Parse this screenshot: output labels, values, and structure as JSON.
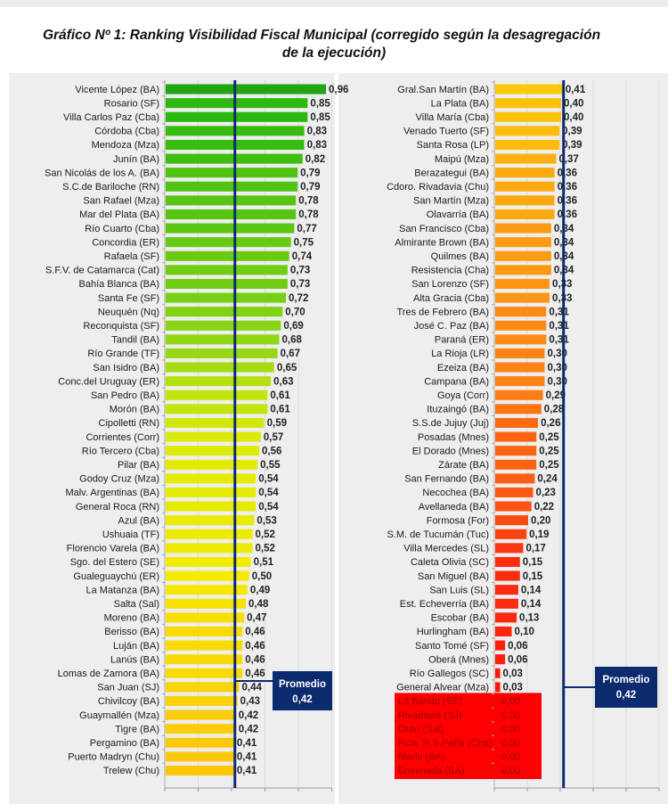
{
  "title": {
    "line1": "Gráfico Nº 1: Ranking Visibilidad Fiscal Municipal (corregido según la desagregación",
    "line2": "de la ejecución)"
  },
  "chart_data": [
    {
      "type": "bar",
      "orientation": "horizontal",
      "title": "Gráfico Nº 1: Ranking Visibilidad Fiscal Municipal (corregido según la desagregación de la ejecución)",
      "xlabel": "",
      "ylabel": "",
      "xlim": [
        0,
        1.0
      ],
      "grid": true,
      "reference_line": {
        "label": "Promedio",
        "value_label": "0,42",
        "value": 0.42
      },
      "categories": [
        "Vicente López (BA)",
        "Rosario (SF)",
        "Villa Carlos Paz (Cba)",
        "Córdoba (Cba)",
        "Mendoza (Mza)",
        "Junín (BA)",
        "San Nicolás de los A. (BA)",
        "S.C.de Bariloche (RN)",
        "San Rafael (Mza)",
        "Mar del Plata (BA)",
        "Río Cuarto (Cba)",
        "Concordia (ER)",
        "Rafaela (SF)",
        "S.F.V. de Catamarca (Cat)",
        "Bahía Blanca (BA)",
        "Santa Fe (SF)",
        "Neuquén  (Nq)",
        "Reconquista (SF)",
        "Tandil (BA)",
        "Río Grande (TF)",
        "San Isidro  (BA)",
        "Conc.del Uruguay (ER)",
        "San Pedro (BA)",
        "Morón (BA)",
        "Cipolletti (RN)",
        "Corrientes (Corr)",
        "Río Tercero (Cba)",
        "Pilar (BA)",
        "Godoy Cruz (Mza)",
        "Malv. Argentinas (BA)",
        "General Roca (RN)",
        "Azul (BA)",
        "Ushuaia (TF)",
        "Florencio Varela (BA)",
        "Sgo. del Estero (SE)",
        "Gualeguaychú (ER)",
        "La Matanza (BA)",
        "Salta (Sal)",
        "Moreno (BA)",
        "Berisso (BA)",
        "Luján (BA)",
        "Lanús (BA)",
        "Lomas de Zamora (BA)",
        "San Juan (SJ)",
        "Chivilcoy (BA)",
        "Guaymallén (Mza)",
        "Tigre (BA)",
        "Pergamino (BA)",
        "Puerto Madryn (Chu)",
        "Trelew (Chu)"
      ],
      "values": [
        0.96,
        0.85,
        0.85,
        0.83,
        0.83,
        0.82,
        0.79,
        0.79,
        0.78,
        0.78,
        0.77,
        0.75,
        0.74,
        0.73,
        0.73,
        0.72,
        0.7,
        0.69,
        0.68,
        0.67,
        0.65,
        0.63,
        0.61,
        0.61,
        0.59,
        0.57,
        0.56,
        0.55,
        0.54,
        0.54,
        0.54,
        0.53,
        0.52,
        0.52,
        0.51,
        0.5,
        0.49,
        0.48,
        0.47,
        0.46,
        0.46,
        0.46,
        0.46,
        0.44,
        0.43,
        0.42,
        0.42,
        0.41,
        0.41,
        0.41
      ],
      "value_labels": [
        "0,96",
        "0,85",
        "0,85",
        "0,83",
        "0,83",
        "0,82",
        "0,79",
        "0,79",
        "0,78",
        "0,78",
        "0,77",
        "0,75",
        "0,74",
        "0,73",
        "0,73",
        "0,72",
        "0,70",
        "0,69",
        "0,68",
        "0,67",
        "0,65",
        "0,63",
        "0,61",
        "0,61",
        "0,59",
        "0,57",
        "0,56",
        "0,55",
        "0,54",
        "0,54",
        "0,54",
        "0,53",
        "0,52",
        "0,52",
        "0,51",
        "0,50",
        "0,49",
        "0,48",
        "0,47",
        "0,46",
        "0,46",
        "0,46",
        "0,46",
        "0,44",
        "0,43",
        "0,42",
        "0,42",
        "0,41",
        "0,41",
        "0,41"
      ]
    },
    {
      "type": "bar",
      "orientation": "horizontal",
      "xlabel": "",
      "ylabel": "",
      "xlim": [
        0,
        1.0
      ],
      "grid": true,
      "reference_line": {
        "label": "Promedio",
        "value_label": "0,42",
        "value": 0.42
      },
      "categories": [
        "Gral.San Martín (BA)",
        "La Plata (BA)",
        "Villa María (Cba)",
        "Venado Tuerto (SF)",
        "Santa Rosa (LP)",
        "Maipú (Mza)",
        "Berazategui (BA)",
        "Cdoro. Rivadavia (Chu)",
        "San Martín (Mza)",
        "Olavarría (BA)",
        "San Francisco (Cba)",
        "Almirante Brown (BA)",
        "Quilmes (BA)",
        "Resistencia (Cha)",
        "San Lorenzo (SF)",
        "Alta Gracia (Cba)",
        "Tres de Febrero (BA)",
        "José C. Paz (BA)",
        "Paraná (ER)",
        "La Rioja (LR)",
        "Ezeiza (BA)",
        "Campana (BA)",
        "Goya (Corr)",
        "Ituzaingó (BA)",
        "S.S.de Jujuy (Juj)",
        "Posadas (Mnes)",
        "El Dorado (Mnes)",
        "Zárate (BA)",
        "San Fernando (BA)",
        "Necochea (BA)",
        "Avellaneda (BA)",
        "Formosa (For)",
        "S.M. de Tucumán (Tuc)",
        "Villa Mercedes (SL)",
        "Caleta Olivia (SC)",
        "San Miguel (BA)",
        "San Luis (SL)",
        "Est. Echeverría (BA)",
        "Escobar (BA)",
        "Hurlingham (BA)",
        "Santo Tomé  (SF)",
        "Oberá (Mnes)",
        "Río Gallegos (SC)",
        "General Alvear (Mza)",
        "La Banda (SE)",
        "Rivadavia (SJ)",
        "Orán (Sal)",
        "Pcia. R.S.Peña (Cha)",
        "Merlo (BA)",
        "Ensenada (BA)"
      ],
      "values": [
        0.41,
        0.4,
        0.4,
        0.39,
        0.39,
        0.37,
        0.36,
        0.36,
        0.36,
        0.36,
        0.34,
        0.34,
        0.34,
        0.34,
        0.33,
        0.33,
        0.31,
        0.31,
        0.31,
        0.3,
        0.3,
        0.3,
        0.29,
        0.28,
        0.26,
        0.25,
        0.25,
        0.25,
        0.24,
        0.23,
        0.22,
        0.2,
        0.19,
        0.17,
        0.15,
        0.15,
        0.14,
        0.14,
        0.13,
        0.1,
        0.06,
        0.06,
        0.03,
        0.03,
        0.0,
        0.0,
        0.0,
        0.0,
        0.0,
        0.0
      ],
      "value_labels": [
        "0,41",
        "0,40",
        "0,40",
        "0,39",
        "0,39",
        "0,37",
        "0,36",
        "0,36",
        "0,36",
        "0,36",
        "0,34",
        "0,34",
        "0,34",
        "0,34",
        "0,33",
        "0,33",
        "0,31",
        "0,31",
        "0,31",
        "0,30",
        "0,30",
        "0,30",
        "0,29",
        "0,28",
        "0,26",
        "0,25",
        "0,25",
        "0,25",
        "0,24",
        "0,23",
        "0,22",
        "0,20",
        "0,19",
        "0,17",
        "0,15",
        "0,15",
        "0,14",
        "0,14",
        "0,13",
        "0,10",
        "0,06",
        "0,06",
        "0,03",
        "0,03",
        "0,00",
        "0,00",
        "0,00",
        "0,00",
        "0,00",
        "0,00"
      ],
      "zero_highlight_color": "#ff0000"
    }
  ],
  "colors": {
    "average_line": "#0c2a6e",
    "average_box": "#0c2a6e",
    "zero_box": "#ff0000",
    "zero_text": "#a00000"
  }
}
